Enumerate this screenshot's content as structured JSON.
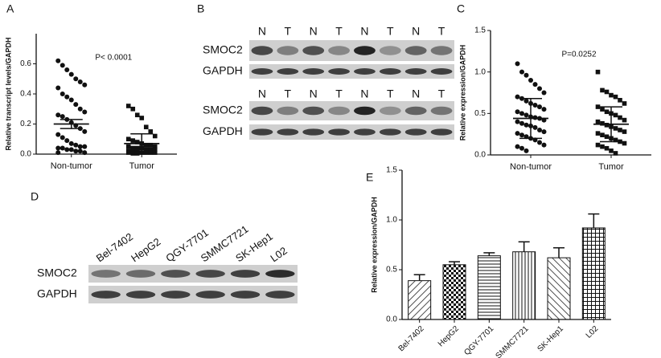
{
  "chart_data": [
    {
      "type": "scatter",
      "panel_label": "A",
      "y_label": "Relative transcript levels/GAPDH",
      "annotation": "P< 0.0001",
      "categories": [
        "Non-tumor",
        "Tumor"
      ],
      "points": [
        [
          0.62,
          0.59,
          0.56,
          0.53,
          0.5,
          0.48,
          0.46,
          0.44,
          0.4,
          0.38,
          0.36,
          0.33,
          0.3,
          0.28,
          0.26,
          0.25,
          0.23,
          0.21,
          0.19,
          0.17,
          0.15,
          0.13,
          0.11,
          0.09,
          0.07,
          0.06,
          0.05,
          0.05,
          0.04,
          0.04,
          0.03,
          0.03,
          0.02,
          0.02,
          0.01,
          0.01
        ],
        [
          0.32,
          0.3,
          0.26,
          0.24,
          0.18,
          0.15,
          0.12,
          0.1,
          0.09,
          0.08,
          0.07,
          0.06,
          0.06,
          0.05,
          0.05,
          0.04,
          0.04,
          0.04,
          0.03,
          0.03,
          0.03,
          0.02,
          0.02,
          0.02,
          0.01,
          0.01,
          0.01,
          0.01,
          0.01,
          0.005,
          0.005
        ]
      ],
      "means": [
        0.2,
        0.07
      ],
      "errors": [
        0.03,
        0.065
      ],
      "color": "#111111",
      "ylim": [
        0,
        0.8
      ],
      "yticks": [
        {
          "value": 0,
          "label": "0.0"
        },
        0.2,
        0.4,
        0.6
      ]
    },
    {
      "type": "scatter",
      "panel_label": "C",
      "y_label": "Relative expression/GAPDH",
      "annotation": "P=0.0252",
      "categories": [
        "Non-tumor",
        "Tumor"
      ],
      "points": [
        [
          1.1,
          1.0,
          0.96,
          0.9,
          0.85,
          0.8,
          0.75,
          0.7,
          0.68,
          0.65,
          0.62,
          0.6,
          0.58,
          0.55,
          0.52,
          0.5,
          0.48,
          0.46,
          0.45,
          0.44,
          0.42,
          0.4,
          0.38,
          0.36,
          0.35,
          0.33,
          0.3,
          0.28,
          0.26,
          0.24,
          0.22,
          0.2,
          0.18,
          0.15,
          0.12,
          0.1,
          0.08,
          0.05
        ],
        [
          1.0,
          0.78,
          0.76,
          0.72,
          0.7,
          0.66,
          0.62,
          0.58,
          0.55,
          0.52,
          0.5,
          0.48,
          0.45,
          0.42,
          0.4,
          0.38,
          0.36,
          0.34,
          0.32,
          0.3,
          0.28,
          0.26,
          0.24,
          0.22,
          0.2,
          0.18,
          0.16,
          0.14,
          0.12,
          0.1,
          0.08,
          0.05,
          0.02
        ]
      ],
      "means": [
        0.44,
        0.37
      ],
      "errors": [
        0.24,
        0.21
      ],
      "color": "#111111",
      "ylim": [
        0,
        1.5
      ],
      "yticks": [
        {
          "value": 0,
          "label": "0.0"
        },
        0.5,
        {
          "value": 1,
          "label": "1.0"
        },
        1.5
      ]
    },
    {
      "type": "bar",
      "panel_label": "E",
      "y_label": "Relative expression/GAPDH",
      "categories": [
        "Bel-7402",
        "HepG2",
        "QGY-7701",
        "SMMC7721",
        "SK-Hep1",
        "L02"
      ],
      "values": [
        0.39,
        0.55,
        0.64,
        0.68,
        0.62,
        0.92
      ],
      "errors": [
        0.06,
        0.03,
        0.03,
        0.1,
        0.1,
        0.14
      ],
      "color": "#111111",
      "ylim": [
        0,
        1.5
      ],
      "yticks": [
        {
          "value": 0,
          "label": "0.0"
        },
        0.5,
        {
          "value": 1,
          "label": "1.0"
        },
        1.5
      ]
    }
  ],
  "panel_B": {
    "label": "B",
    "blots": [
      {
        "lanes": [
          "N",
          "T",
          "N",
          "T",
          "N",
          "T",
          "N",
          "T"
        ],
        "rows": [
          "SMOC2",
          "GAPDH"
        ]
      },
      {
        "lanes": [
          "N",
          "T",
          "N",
          "T",
          "N",
          "T",
          "N",
          "T"
        ],
        "rows": [
          "SMOC2",
          "GAPDH"
        ]
      }
    ]
  },
  "panel_D": {
    "label": "D",
    "lanes": [
      "Bel-7402",
      "HepG2",
      "QGY-7701",
      "SMMC7721",
      "SK-Hep1",
      "L02"
    ],
    "rows": [
      "SMOC2",
      "GAPDH"
    ]
  }
}
